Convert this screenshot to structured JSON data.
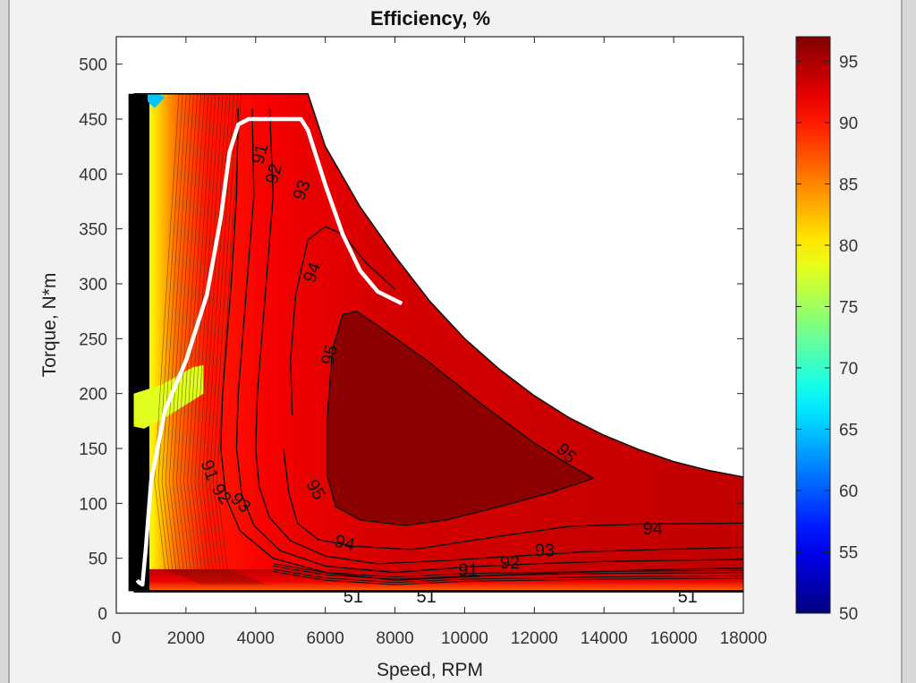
{
  "chart_data": {
    "type": "contour",
    "title": "Efficiency, %",
    "xlabel": "Speed, RPM",
    "ylabel": "Torque, N*m",
    "xlim": [
      0,
      18000
    ],
    "ylim": [
      0,
      525
    ],
    "xticks": [
      0,
      2000,
      4000,
      6000,
      8000,
      10000,
      12000,
      14000,
      16000,
      18000
    ],
    "yticks": [
      0,
      50,
      100,
      150,
      200,
      250,
      300,
      350,
      400,
      450,
      500
    ],
    "colorbar": {
      "colormap": "jet",
      "range": [
        50,
        97
      ],
      "ticks": [
        50,
        55,
        60,
        65,
        70,
        75,
        80,
        85,
        90,
        95
      ]
    },
    "max_torque_envelope": [
      [
        500,
        473
      ],
      [
        5500,
        473
      ],
      [
        6000,
        425
      ],
      [
        7000,
        370
      ],
      [
        8000,
        325
      ],
      [
        9000,
        284
      ],
      [
        10000,
        250
      ],
      [
        11000,
        222
      ],
      [
        12000,
        198
      ],
      [
        13000,
        178
      ],
      [
        14000,
        162
      ],
      [
        15000,
        149
      ],
      [
        16000,
        138
      ],
      [
        17000,
        130
      ],
      [
        18000,
        124
      ]
    ],
    "min_torque": 20,
    "contours": [
      {
        "level": 95,
        "points": [
          [
            6050,
            175
          ],
          [
            6200,
            240
          ],
          [
            6500,
            272
          ],
          [
            6900,
            275
          ],
          [
            7500,
            262
          ],
          [
            9000,
            228
          ],
          [
            10500,
            190
          ],
          [
            12000,
            155
          ],
          [
            13000,
            135
          ],
          [
            13700,
            123
          ],
          [
            12500,
            110
          ],
          [
            11000,
            97
          ],
          [
            9500,
            85
          ],
          [
            8300,
            80
          ],
          [
            7000,
            85
          ],
          [
            6300,
            97
          ],
          [
            6050,
            125
          ],
          [
            6050,
            175
          ]
        ]
      },
      {
        "level": 94,
        "points": [
          [
            5050,
            180
          ],
          [
            5000,
            230
          ],
          [
            5150,
            290
          ],
          [
            5500,
            340
          ],
          [
            6000,
            352
          ],
          [
            6500,
            345
          ],
          [
            7200,
            318
          ],
          [
            8000,
            295
          ]
        ]
      },
      {
        "level": 94,
        "points": [
          [
            4800,
            150
          ],
          [
            4950,
            110
          ],
          [
            5200,
            82
          ],
          [
            5800,
            67
          ],
          [
            6800,
            61
          ],
          [
            8500,
            58
          ],
          [
            11000,
            70
          ],
          [
            13000,
            79
          ],
          [
            15000,
            81
          ],
          [
            18000,
            82
          ]
        ]
      },
      {
        "level": 93,
        "points": [
          [
            4400,
            460
          ],
          [
            4500,
            380
          ],
          [
            4300,
            300
          ],
          [
            4050,
            200
          ],
          [
            4000,
            150
          ],
          [
            4100,
            115
          ],
          [
            4400,
            87
          ],
          [
            5000,
            66
          ],
          [
            6000,
            52
          ],
          [
            7500,
            45
          ],
          [
            9500,
            48
          ],
          [
            11500,
            52
          ],
          [
            13500,
            56
          ],
          [
            15500,
            58
          ],
          [
            18000,
            60
          ]
        ]
      },
      {
        "level": 92,
        "points": [
          [
            3900,
            460
          ],
          [
            3950,
            380
          ],
          [
            3750,
            300
          ],
          [
            3500,
            200
          ],
          [
            3450,
            150
          ],
          [
            3600,
            108
          ],
          [
            3950,
            80
          ],
          [
            4700,
            57
          ],
          [
            6000,
            43
          ],
          [
            8000,
            37
          ],
          [
            10000,
            42
          ],
          [
            12000,
            45
          ],
          [
            14000,
            47
          ],
          [
            16000,
            48
          ],
          [
            18000,
            49
          ]
        ]
      },
      {
        "level": 91,
        "points": [
          [
            3500,
            460
          ],
          [
            3450,
            380
          ],
          [
            3300,
            300
          ],
          [
            3050,
            200
          ],
          [
            3000,
            150
          ],
          [
            3150,
            105
          ],
          [
            3550,
            75
          ],
          [
            4500,
            50
          ],
          [
            6000,
            37
          ],
          [
            8000,
            30
          ],
          [
            10000,
            33
          ],
          [
            12000,
            36
          ],
          [
            14000,
            38
          ],
          [
            16000,
            40
          ],
          [
            18000,
            41
          ]
        ]
      }
    ],
    "operating_boundary_white": [
      [
        600,
        30
      ],
      [
        650,
        28
      ],
      [
        750,
        26
      ],
      [
        850,
        60
      ],
      [
        1000,
        120
      ],
      [
        1400,
        185
      ],
      [
        2000,
        230
      ],
      [
        2600,
        290
      ],
      [
        3000,
        360
      ],
      [
        3250,
        420
      ],
      [
        3500,
        445
      ],
      [
        3800,
        450
      ],
      [
        5300,
        450
      ],
      [
        5500,
        440
      ],
      [
        6000,
        390
      ],
      [
        6500,
        345
      ],
      [
        7000,
        312
      ],
      [
        7500,
        293
      ],
      [
        8200,
        282
      ]
    ],
    "contour_labels": [
      {
        "text": "91",
        "pos": [
          4150,
          418
        ],
        "angle": -75
      },
      {
        "text": "92",
        "pos": [
          4550,
          400
        ],
        "angle": -75
      },
      {
        "text": "93",
        "pos": [
          5350,
          385
        ],
        "angle": -70
      },
      {
        "text": "94",
        "pos": [
          5650,
          310
        ],
        "angle": -70
      },
      {
        "text": "95",
        "pos": [
          6150,
          235
        ],
        "angle": -75
      },
      {
        "text": "95",
        "pos": [
          12900,
          145
        ],
        "angle": 45
      },
      {
        "text": "95",
        "pos": [
          5700,
          112
        ],
        "angle": 60
      },
      {
        "text": "94",
        "pos": [
          6550,
          63
        ],
        "angle": 15
      },
      {
        "text": "94",
        "pos": [
          15400,
          76
        ],
        "angle": 0
      },
      {
        "text": "93",
        "pos": [
          12300,
          56
        ],
        "angle": 0
      },
      {
        "text": "92",
        "pos": [
          11300,
          45
        ],
        "angle": 0
      },
      {
        "text": "91",
        "pos": [
          10100,
          38
        ],
        "angle": 0
      },
      {
        "text": "91",
        "pos": [
          2650,
          130
        ],
        "angle": 70
      },
      {
        "text": "92",
        "pos": [
          3000,
          108
        ],
        "angle": 55
      },
      {
        "text": "93",
        "pos": [
          3550,
          100
        ],
        "angle": 45
      },
      {
        "text": "51",
        "pos": [
          6800,
          14
        ],
        "angle": 0
      },
      {
        "text": "51",
        "pos": [
          8900,
          14
        ],
        "angle": 0
      },
      {
        "text": "51",
        "pos": [
          16400,
          14
        ],
        "angle": 0
      }
    ]
  }
}
